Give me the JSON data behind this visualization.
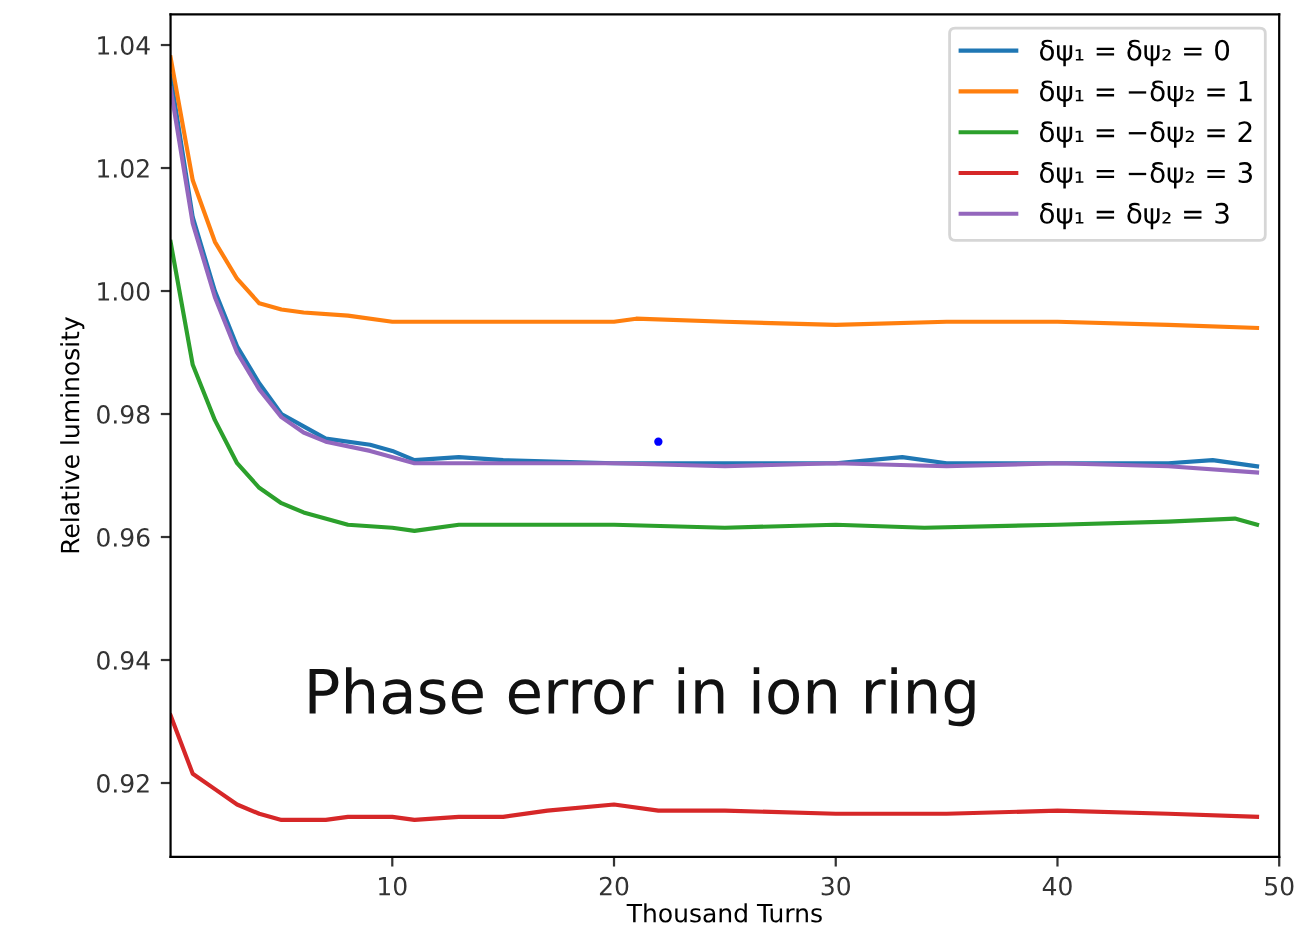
{
  "chart_data": {
    "type": "line",
    "xlabel": "Thousand Turns",
    "ylabel": "Relative luminosity",
    "xlim": [
      0,
      50
    ],
    "xticks": [
      10,
      20,
      30,
      40,
      50
    ],
    "ylim": [
      0.908,
      1.045
    ],
    "yticks": [
      0.92,
      0.94,
      0.96,
      0.98,
      {
        "value": 1.0,
        "label": "1.00"
      },
      1.02,
      1.04
    ],
    "grid": false,
    "legend": "top right",
    "annotations": [
      "Phase error in ion ring"
    ],
    "series": [
      {
        "name": "δψ₁ = δψ₂ = 0",
        "color": "#1f77b4",
        "x": [
          0,
          1,
          2,
          3,
          4,
          5,
          6,
          7,
          9,
          10,
          11,
          13,
          15,
          20,
          25,
          30,
          33,
          35,
          40,
          45,
          47,
          49
        ],
        "values": [
          1.035,
          1.012,
          1.0,
          0.991,
          0.985,
          0.98,
          0.978,
          0.976,
          0.975,
          0.974,
          0.9725,
          0.973,
          0.9725,
          0.972,
          0.972,
          0.972,
          0.973,
          0.972,
          0.972,
          0.972,
          0.9725,
          0.9715
        ]
      },
      {
        "name": "δψ₁ = −δψ₂ = 1",
        "color": "#ff7f0e",
        "x": [
          0,
          1,
          2,
          3,
          4,
          5,
          6,
          8,
          10,
          15,
          20,
          21,
          25,
          30,
          35,
          40,
          45,
          49
        ],
        "values": [
          1.038,
          1.018,
          1.008,
          1.002,
          0.998,
          0.997,
          0.9965,
          0.996,
          0.995,
          0.995,
          0.995,
          0.9955,
          0.995,
          0.9945,
          0.995,
          0.995,
          0.9945,
          0.994
        ]
      },
      {
        "name": "δψ₁ = −δψ₂ = 2",
        "color": "#2ca02c",
        "x": [
          0,
          1,
          2,
          3,
          4,
          5,
          6,
          8,
          10,
          11,
          13,
          20,
          25,
          30,
          34,
          40,
          45,
          48,
          49
        ],
        "values": [
          1.008,
          0.988,
          0.979,
          0.972,
          0.968,
          0.9655,
          0.964,
          0.962,
          0.9615,
          0.961,
          0.962,
          0.962,
          0.9615,
          0.962,
          0.9615,
          0.962,
          0.9625,
          0.963,
          0.962
        ]
      },
      {
        "name": "δψ₁ = −δψ₂ = 3",
        "color": "#d62728",
        "x": [
          0,
          1,
          2,
          3,
          4,
          5,
          7,
          8,
          10,
          11,
          13,
          15,
          17,
          20,
          22,
          25,
          30,
          35,
          40,
          45,
          49
        ],
        "values": [
          0.931,
          0.9215,
          0.919,
          0.9165,
          0.915,
          0.914,
          0.914,
          0.9145,
          0.9145,
          0.914,
          0.9145,
          0.9145,
          0.9155,
          0.9165,
          0.9155,
          0.9155,
          0.915,
          0.915,
          0.9155,
          0.915,
          0.9145
        ]
      },
      {
        "name": "δψ₁ = δψ₂ = 3",
        "color": "#9467bd",
        "x": [
          0,
          1,
          2,
          3,
          4,
          5,
          6,
          7,
          9,
          11,
          15,
          20,
          25,
          30,
          35,
          40,
          45,
          49
        ],
        "values": [
          1.033,
          1.011,
          0.999,
          0.99,
          0.984,
          0.9795,
          0.977,
          0.9755,
          0.974,
          0.972,
          0.972,
          0.972,
          0.9715,
          0.972,
          0.9715,
          0.972,
          0.9715,
          0.9705
        ]
      },
      {
        "type": "scatter",
        "color": "#0000ff",
        "x": [
          22
        ],
        "values": [
          0.9755
        ]
      }
    ]
  }
}
